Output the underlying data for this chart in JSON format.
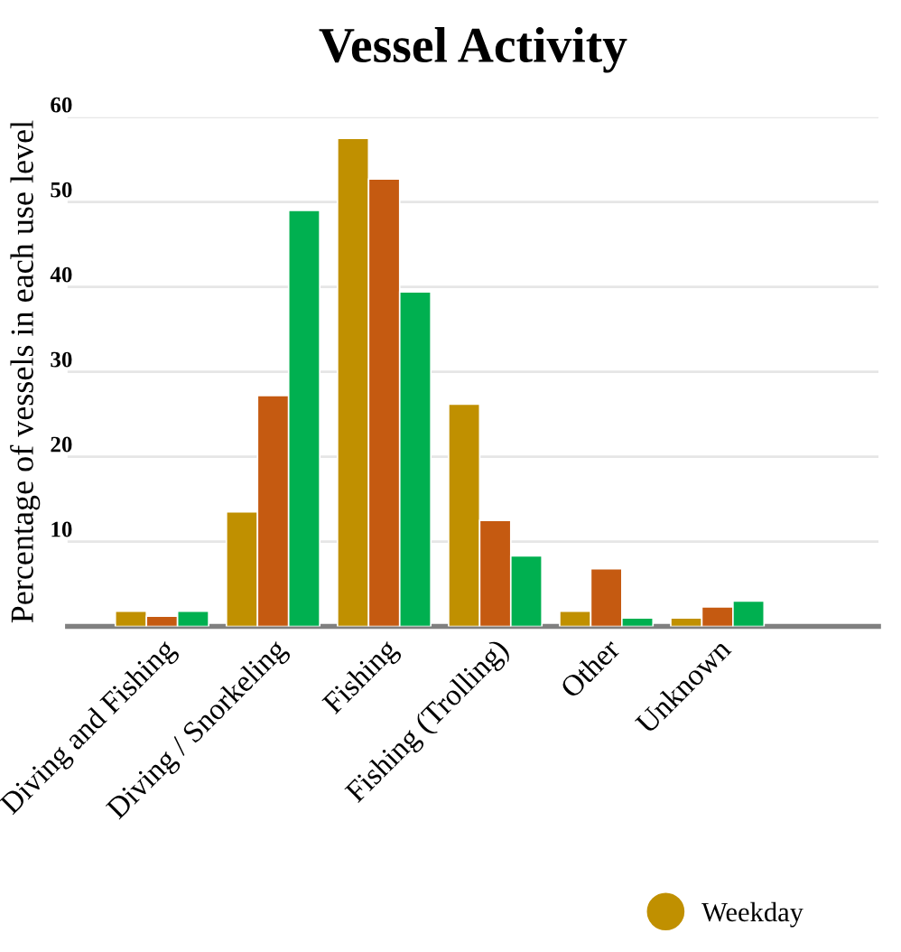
{
  "chart_data": {
    "type": "bar",
    "title": "Vessel Activity",
    "ylabel": "Percentage of vessels in each use level",
    "categories": [
      "Diving and Fishing",
      "Diving / Snorkeling",
      "Fishing",
      "Fishing (Trolling)",
      "Other",
      "Unknown"
    ],
    "series": [
      {
        "name": "Weekday",
        "color": "#c09000",
        "values": [
          1.8,
          13.5,
          57.5,
          26.2,
          1.8,
          1.0
        ]
      },
      {
        "color": "#c55a11",
        "values": [
          1.2,
          27.2,
          52.7,
          12.5,
          6.8,
          2.3
        ]
      },
      {
        "color": "#00b050",
        "values": [
          1.8,
          49.0,
          39.4,
          8.3,
          1.0,
          3.0
        ]
      }
    ],
    "ylim": [
      0,
      60
    ],
    "yticks": [
      10,
      20,
      30,
      40,
      50,
      60
    ],
    "grid": "y",
    "legend": "bottom right",
    "marker": "circle"
  }
}
